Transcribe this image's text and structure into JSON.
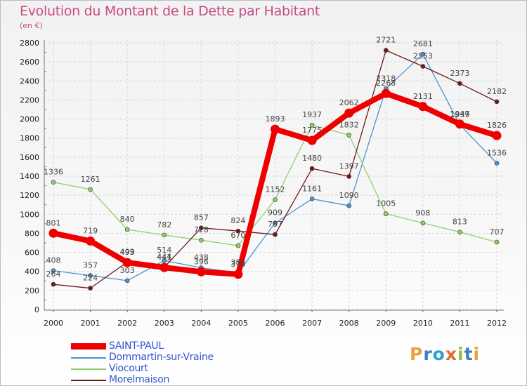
{
  "header": {
    "title": "Evolution du Montant de la Dette par Habitant",
    "unit": "(en €)"
  },
  "logo": {
    "letters": [
      "P",
      "r",
      "o",
      "x",
      "i",
      "t",
      "i"
    ],
    "colors": [
      "#e8a33a",
      "#3d7fc0",
      "#2f9fd0",
      "#e06a2a",
      "#8cc63e",
      "#3d7fc0",
      "#e8a33a"
    ]
  },
  "chart_data": {
    "type": "line",
    "title": "Evolution du Montant de la Dette par Habitant",
    "subtitle": "(en €)",
    "x": [
      "2000",
      "2001",
      "2002",
      "2003",
      "2004",
      "2005",
      "2006",
      "2007",
      "2008",
      "2009",
      "2010",
      "2011",
      "2012"
    ],
    "ylim": [
      0,
      2800
    ],
    "yticks": [
      0,
      200,
      400,
      600,
      800,
      1000,
      1200,
      1400,
      1600,
      1800,
      2000,
      2200,
      2400,
      2600,
      2800
    ],
    "grid": true,
    "legend_position": "bottom-left",
    "series": [
      {
        "name": "SAINT-PAUL",
        "color": "#ee0000",
        "thick": true,
        "values": [
          801,
          719,
          493,
          441,
          396,
          370,
          1893,
          1775,
          2062,
          2268,
          2131,
          1947,
          1826
        ]
      },
      {
        "name": "Dommartin-sur-Vraine",
        "color": "#4e93d0",
        "values": [
          408,
          357,
          303,
          514,
          438,
          386,
          909,
          1161,
          1090,
          2318,
          2681,
          1939,
          1536
        ]
      },
      {
        "name": "Viocourt",
        "color": "#8ed16b",
        "values": [
          1336,
          1261,
          840,
          782,
          728,
          670,
          1152,
          1937,
          1832,
          1005,
          908,
          813,
          707
        ]
      },
      {
        "name": "Morelmaison",
        "color": "#6e1a1a",
        "values": [
          264,
          224,
          499,
          444,
          857,
          824,
          787,
          1480,
          1397,
          2721,
          2553,
          2373,
          2182
        ]
      }
    ]
  }
}
